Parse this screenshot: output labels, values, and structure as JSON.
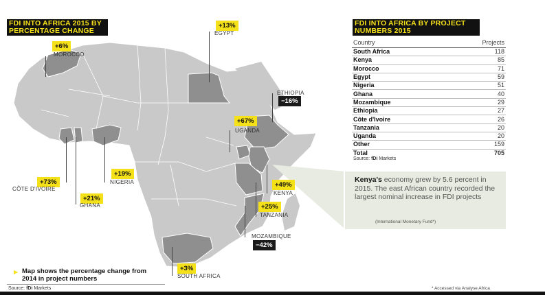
{
  "map_title": "FDI INTO AFRICA 2015 BY PERCENTAGE CHANGE",
  "table_title": "FDI INTO AFRICA BY PROJECT NUMBERS 2015",
  "colors": {
    "accent": "#f5e11a",
    "dark": "#111111",
    "land_base": "#c9c9c9",
    "land_highlight": "#8f8f8f",
    "callout_bg": "#e8ebe1"
  },
  "countries": [
    {
      "id": "morocco",
      "name": "MOROCCO",
      "change": "+6%",
      "direction": "positive"
    },
    {
      "id": "egypt",
      "name": "EGYPT",
      "change": "+13%",
      "direction": "positive"
    },
    {
      "id": "ethiopia",
      "name": "ETHIOPIA",
      "change": "−16%",
      "direction": "negative"
    },
    {
      "id": "uganda",
      "name": "UGANDA",
      "change": "+67%",
      "direction": "positive"
    },
    {
      "id": "nigeria",
      "name": "NIGERIA",
      "change": "+19%",
      "direction": "positive"
    },
    {
      "id": "cote",
      "name": "CÔTE D'IVOIRE",
      "change": "+73%",
      "direction": "positive"
    },
    {
      "id": "ghana",
      "name": "GHANA",
      "change": "+21%",
      "direction": "positive"
    },
    {
      "id": "kenya",
      "name": "KENYA",
      "change": "+49%",
      "direction": "positive"
    },
    {
      "id": "tanzania",
      "name": "TANZANIA",
      "change": "+25%",
      "direction": "positive"
    },
    {
      "id": "mozambique",
      "name": "MOZAMBIQUE",
      "change": "−42%",
      "direction": "negative"
    },
    {
      "id": "southafrica",
      "name": "SOUTH AFRICA",
      "change": "+3%",
      "direction": "positive"
    }
  ],
  "table": {
    "col_country": "Country",
    "col_projects": "Projects",
    "rows": [
      {
        "country": "South Africa",
        "projects": "118"
      },
      {
        "country": "Kenya",
        "projects": "85"
      },
      {
        "country": "Morocco",
        "projects": "71"
      },
      {
        "country": "Egypt",
        "projects": "59"
      },
      {
        "country": "Nigeria",
        "projects": "51"
      },
      {
        "country": "Ghana",
        "projects": "40"
      },
      {
        "country": "Mozambique",
        "projects": "29"
      },
      {
        "country": "Ethiopia",
        "projects": "27"
      },
      {
        "country": "Côte d'Ivoire",
        "projects": "26"
      },
      {
        "country": "Tanzania",
        "projects": "20"
      },
      {
        "country": "Uganda",
        "projects": "20"
      },
      {
        "country": "Other",
        "projects": "159"
      }
    ],
    "total_label": "Total",
    "total_value": "705",
    "source_prefix": "Source: ",
    "source_name": "fDi",
    "source_suffix": " Markets"
  },
  "callout": {
    "bold": "Kenya's",
    "text": " economy grew by 5.6 percent in 2015. The east African country recorded the largest nominal increase in FDI projects",
    "source": "(International Monetary Fund*)"
  },
  "note": "Map shows the percentage change from 2014 in project numbers",
  "map_source_prefix": "Source: ",
  "map_source_name": "fDi",
  "map_source_suffix": " Markets",
  "footnote": "* Accessed via Analyse Africa"
}
